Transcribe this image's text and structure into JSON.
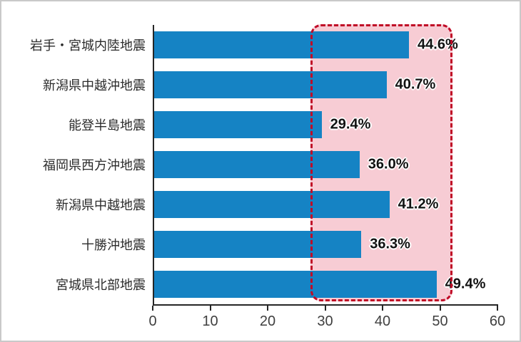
{
  "chart_data": {
    "type": "bar",
    "orientation": "horizontal",
    "title": "",
    "xlabel": "",
    "ylabel": "",
    "categories": [
      "岩手・宮城内陸地震",
      "新潟県中越沖地震",
      "能登半島地震",
      "福岡県西方沖地震",
      "新潟県中越地震",
      "十勝沖地震",
      "宮城県北部地震"
    ],
    "values": [
      44.6,
      40.7,
      29.4,
      36.0,
      41.2,
      36.3,
      49.4
    ],
    "value_labels": [
      "44.6%",
      "40.7%",
      "29.4%",
      "36.0%",
      "41.2%",
      "36.3%",
      "49.4%"
    ],
    "xlim": [
      0,
      60
    ],
    "x_ticks": [
      0,
      10,
      20,
      30,
      40,
      50,
      60
    ],
    "grid": false,
    "legend": null,
    "bar_color": "#1583c4",
    "highlight_region": {
      "x_start": 27.4,
      "x_end": 52.2,
      "fill_color": "#f7ccd4",
      "border_color": "#c00a26",
      "border_style": "dashed"
    }
  }
}
